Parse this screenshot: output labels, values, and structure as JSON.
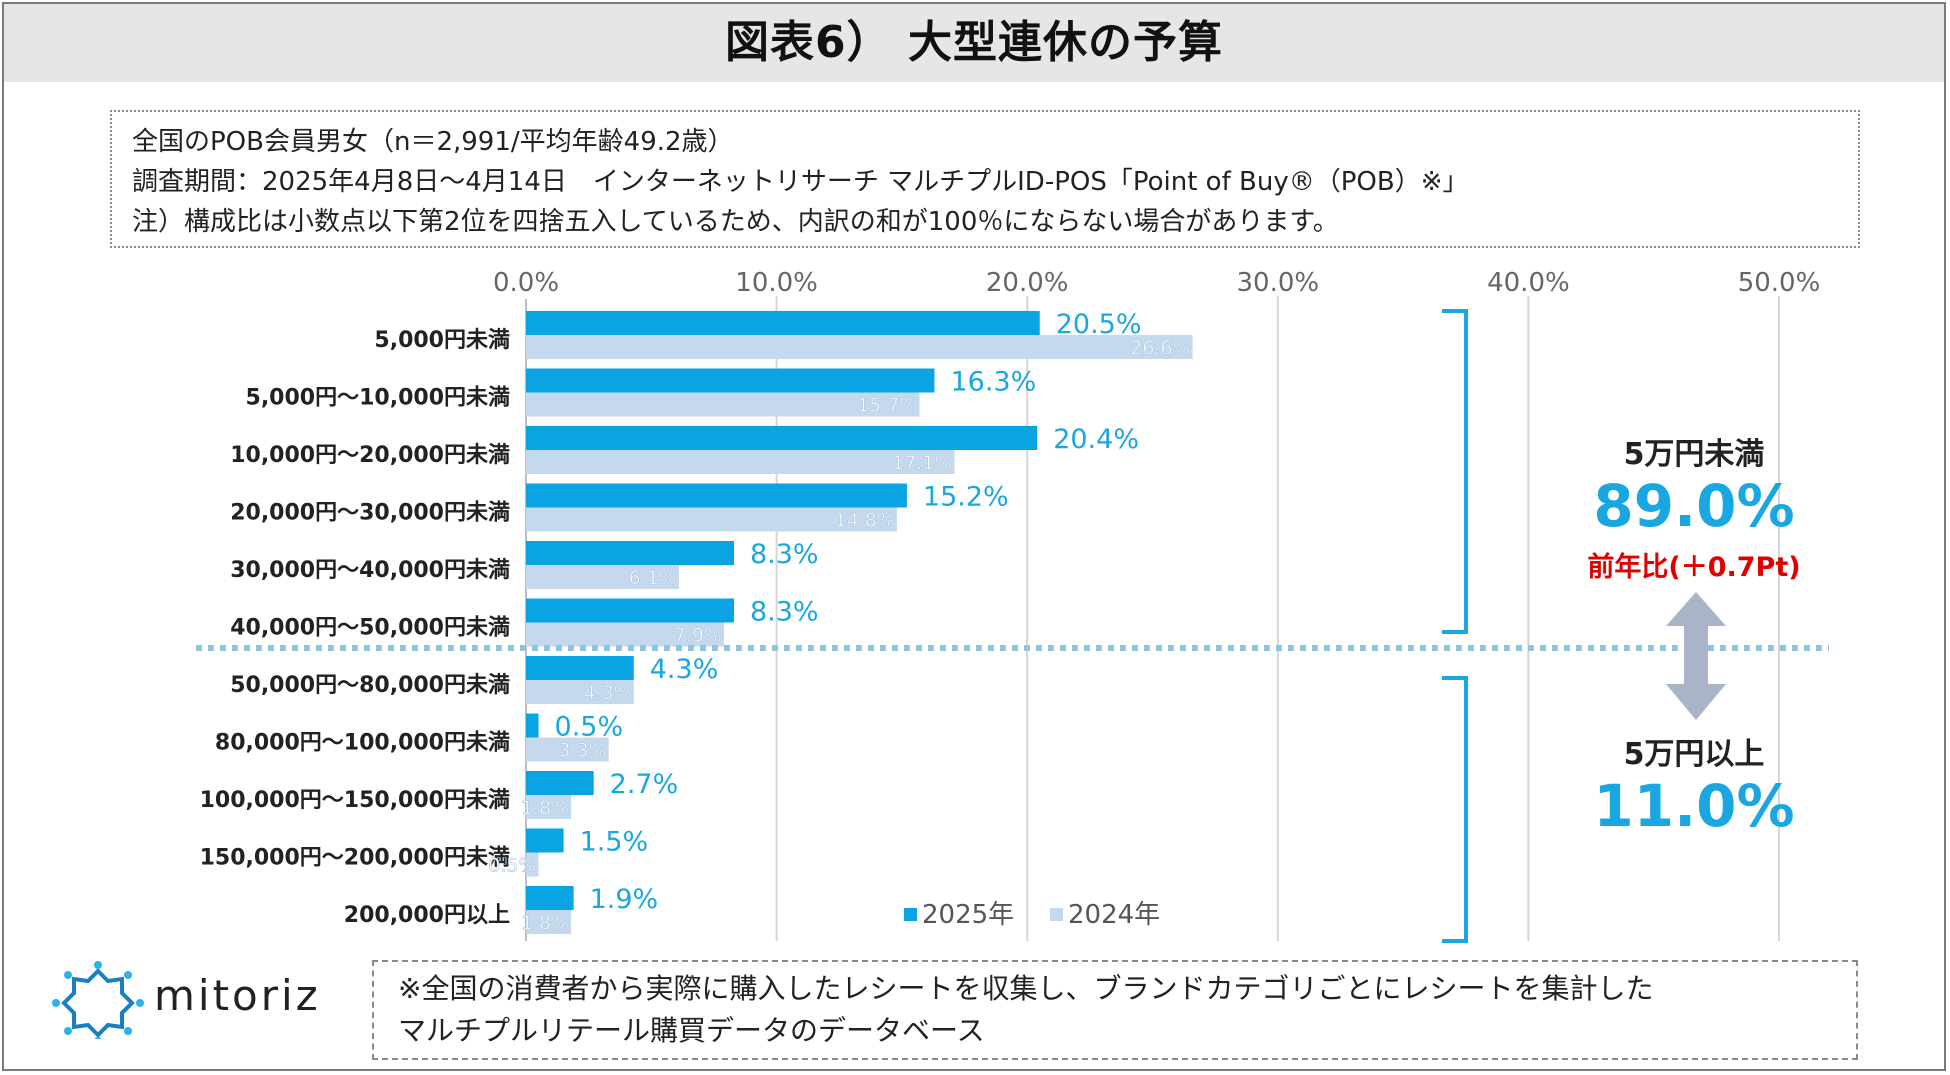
{
  "title": "図表6） 大型連休の予算",
  "notes": [
    "全国のPOB会員男女（n＝2,991/平均年齢49.2歳）",
    "調査期間：2025年4月8日～4月14日　インターネットリサーチ マルチプルID-POS「Point of Buy®（POB）※」",
    "注）構成比は小数点以下第2位を四捨五入しているため、内訳の和が100％にならない場合があります。"
  ],
  "footer": [
    "※全国の消費者から実際に購入したレシートを収集し、ブランドカテゴリごとにレシートを集計した",
    "マルチプルリテール購買データのデータベース"
  ],
  "logo_text": "mitoriz",
  "summary": {
    "under_label": "5万円未満",
    "under_value": "89.0%",
    "yoy": "前年比(＋0.7Pt)",
    "over_label": "5万円以上",
    "over_value": "11.0%"
  },
  "colors": {
    "series_2025": "#0aa4e3",
    "series_2024": "#c4d9ee",
    "label_2025": "#1aa6e0",
    "yoy": "#e00000",
    "bracket": "#1aa6e0",
    "arrow": "#a9b4c8",
    "divider": "#8fc3e0"
  },
  "chart_data": {
    "type": "bar",
    "orientation": "horizontal",
    "categories": [
      "5,000円未満",
      "5,000円～10,000円未満",
      "10,000円～20,000円未満",
      "20,000円～30,000円未満",
      "30,000円～40,000円未満",
      "40,000円～50,000円未満",
      "50,000円～80,000円未満",
      "80,000円～100,000円未満",
      "100,000円～150,000円未満",
      "150,000円～200,000円未満",
      "200,000円以上"
    ],
    "series": [
      {
        "name": "2025年",
        "values": [
          20.5,
          16.3,
          20.4,
          15.2,
          8.3,
          8.3,
          4.3,
          0.5,
          2.7,
          1.5,
          1.9
        ],
        "labels": [
          "20.5%",
          "16.3%",
          "20.4%",
          "15.2%",
          "8.3%",
          "8.3%",
          "4.3%",
          "0.5%",
          "2.7%",
          "1.5%",
          "1.9%"
        ]
      },
      {
        "name": "2024年",
        "values": [
          26.6,
          15.7,
          17.1,
          14.8,
          6.1,
          7.9,
          4.3,
          3.3,
          1.8,
          0.5,
          1.8
        ],
        "labels": [
          "26.6%",
          "15.7%",
          "17.1%",
          "14.8%",
          "6.1%",
          "7.9%",
          "4.3%",
          "3.3%",
          "1.8%",
          "0.5%",
          "1.8%"
        ]
      }
    ],
    "xlim": [
      0,
      50
    ],
    "xticks": [
      0,
      10,
      20,
      30,
      40,
      50
    ],
    "xtick_labels": [
      "0.0%",
      "10.0%",
      "20.0%",
      "30.0%",
      "40.0%",
      "50.0%"
    ],
    "grid": true,
    "legend": "bottom-right",
    "split_after_index": 5
  }
}
